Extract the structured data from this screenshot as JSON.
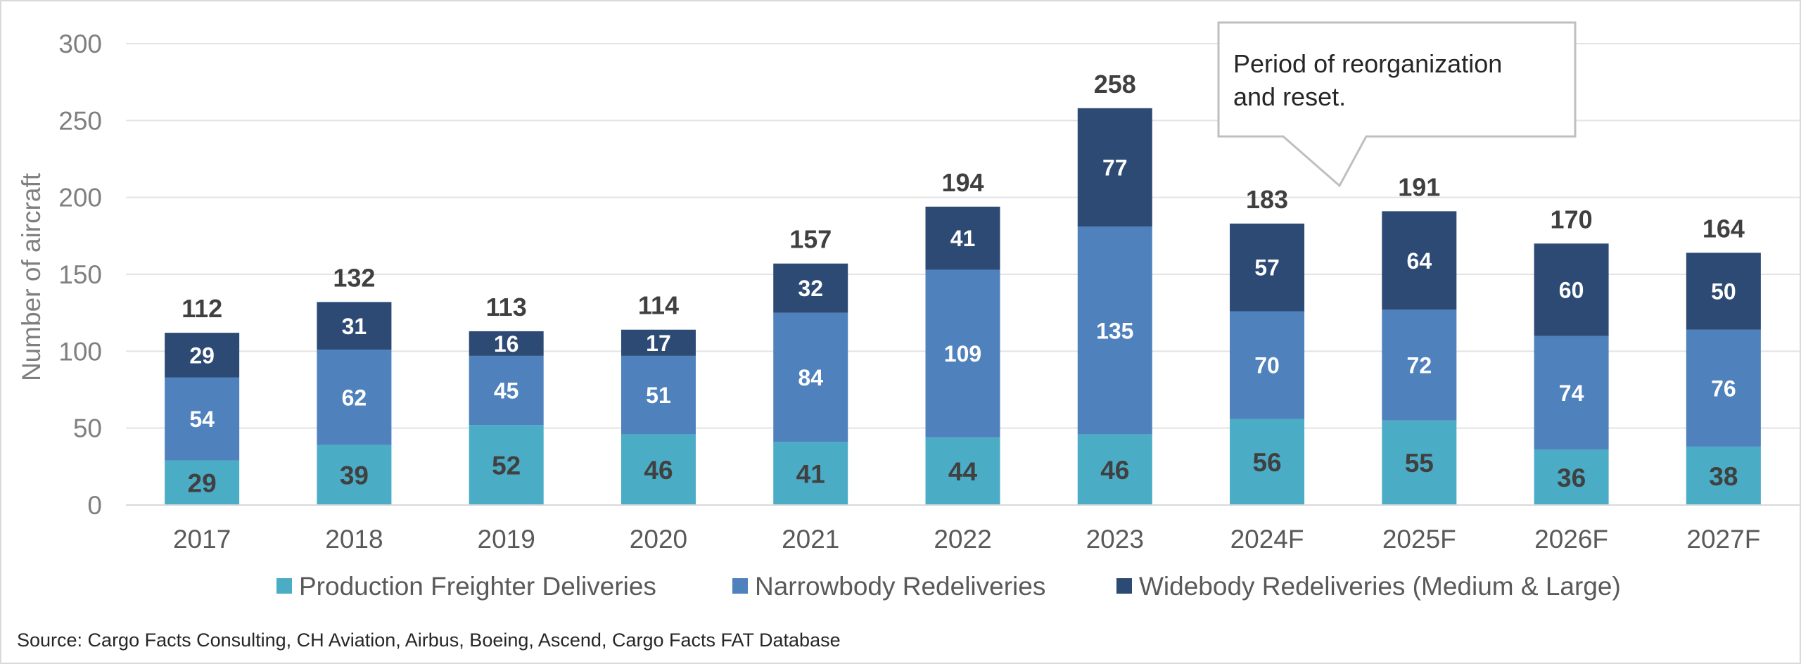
{
  "chart_data": {
    "type": "bar",
    "stacked": true,
    "categories": [
      "2017",
      "2018",
      "2019",
      "2020",
      "2021",
      "2022",
      "2023",
      "2024F",
      "2025F",
      "2026F",
      "2027F"
    ],
    "series": [
      {
        "name": "Production Freighter Deliveries",
        "color": "#4bacc6",
        "values": [
          29,
          39,
          52,
          46,
          41,
          44,
          46,
          56,
          55,
          36,
          38
        ]
      },
      {
        "name": "Narrowbody Redeliveries",
        "color": "#4f81bd",
        "values": [
          54,
          62,
          45,
          51,
          84,
          109,
          135,
          70,
          72,
          74,
          76
        ]
      },
      {
        "name": "Widebody Redeliveries (Medium & Large)",
        "color": "#2c4a73",
        "values": [
          29,
          31,
          16,
          17,
          32,
          41,
          77,
          57,
          64,
          60,
          50
        ]
      }
    ],
    "totals": [
      112,
      132,
      113,
      114,
      157,
      194,
      258,
      183,
      191,
      170,
      164
    ],
    "ylabel": "Number of aircraft",
    "xlabel": "",
    "ylim": [
      0,
      300
    ],
    "yticks": [
      0,
      50,
      100,
      150,
      200,
      250,
      300
    ],
    "grid": true,
    "legend_position": "bottom",
    "annotation": "Period of reorganization and reset."
  },
  "source": "Source: Cargo Facts Consulting, CH Aviation, Airbus, Boeing, Ascend, Cargo Facts FAT Database"
}
